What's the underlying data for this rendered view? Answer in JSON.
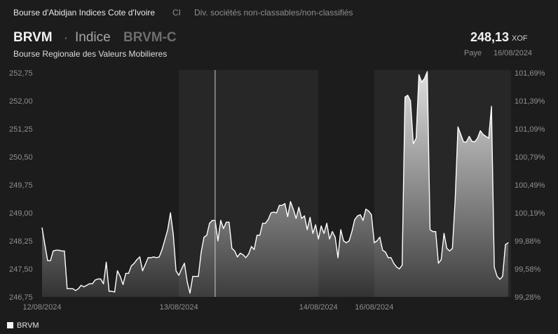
{
  "header": {
    "exchange": "Bourse d'Abidjan Indices Cote d'Ivoire",
    "class": "CI",
    "sector": "Div. sociétés non-classables/non-classifiés",
    "ticker": "BRVM",
    "dot": "·",
    "type": "Indice",
    "code": "BRVM-C",
    "name": "Bourse Regionale des Valeurs Mobilieres",
    "price": "248,13",
    "currency": "XOF",
    "status": "Paye",
    "date": "16/08/2024"
  },
  "colors": {
    "background": "#1c1c1c",
    "band": "#272727",
    "line": "#ffffff",
    "text_muted": "#8f8f8f"
  },
  "legend": {
    "label": "BRVM"
  },
  "chart_data": {
    "type": "area",
    "title": "",
    "xlabel": "",
    "ylabel": "",
    "ylim": [
      246.75,
      252.75
    ],
    "y_ticks_left": [
      "252,75",
      "252,00",
      "251,25",
      "250,50",
      "249,75",
      "249,00",
      "248,25",
      "247,50",
      "246,75"
    ],
    "y_ticks_right": [
      "101,69%",
      "101,39%",
      "101,09%",
      "100,79%",
      "100,49%",
      "100,19%",
      "99,88%",
      "99,58%",
      "99,28%"
    ],
    "x_ticks": [
      {
        "label": "12/08/2024",
        "at": 0
      },
      {
        "label": "13/08/2024",
        "at": 49
      },
      {
        "label": "14/08/2024",
        "at": 99
      },
      {
        "label": "16/08/2024",
        "at": 119
      }
    ],
    "shaded_sessions": [
      [
        49,
        99
      ],
      [
        119,
        168
      ]
    ],
    "crosshair_at": 62,
    "series": [
      {
        "name": "BRVM",
        "values": [
          248.6,
          248.15,
          247.72,
          247.72,
          247.98,
          248.0,
          248.0,
          247.98,
          247.98,
          246.97,
          246.97,
          246.97,
          246.92,
          246.97,
          247.06,
          247.02,
          247.06,
          247.1,
          247.1,
          247.2,
          247.23,
          247.23,
          247.1,
          247.68,
          246.9,
          246.9,
          246.88,
          247.45,
          247.3,
          247.08,
          247.38,
          247.38,
          247.58,
          247.65,
          247.75,
          247.82,
          247.45,
          247.62,
          247.8,
          247.8,
          247.82,
          247.8,
          247.82,
          248.02,
          248.28,
          248.55,
          249.0,
          248.42,
          247.45,
          247.33,
          247.5,
          247.65,
          247.15,
          246.85,
          247.3,
          247.3,
          247.3,
          247.95,
          248.35,
          248.4,
          248.72,
          248.8,
          248.8,
          248.25,
          248.8,
          248.58,
          248.75,
          248.75,
          248.05,
          247.98,
          247.82,
          247.92,
          247.88,
          247.8,
          247.9,
          248.1,
          248.02,
          248.4,
          248.4,
          248.72,
          248.72,
          248.82,
          249.0,
          249.02,
          249.0,
          249.2,
          249.2,
          249.25,
          248.9,
          249.3,
          249.1,
          248.85,
          249.15,
          248.85,
          248.92,
          248.55,
          248.88,
          248.45,
          248.68,
          248.3,
          248.65,
          248.45,
          248.72,
          248.3,
          248.5,
          248.35,
          247.8,
          248.55,
          248.25,
          248.2,
          248.25,
          248.5,
          248.82,
          248.92,
          248.95,
          248.8,
          249.1,
          249.05,
          248.95,
          248.2,
          248.25,
          248.35,
          248.0,
          247.95,
          247.8,
          247.8,
          247.65,
          247.55,
          247.5,
          247.6,
          252.1,
          252.15,
          252.0,
          250.85,
          251.0,
          252.7,
          252.5,
          252.6,
          252.78,
          248.55,
          248.5,
          248.5,
          247.65,
          247.75,
          248.45,
          248.05,
          247.98,
          248.05,
          249.35,
          251.3,
          251.1,
          250.9,
          250.9,
          251.05,
          250.92,
          250.9,
          251.0,
          251.2,
          251.1,
          251.05,
          251.0,
          251.85,
          247.55,
          247.3,
          247.22,
          247.3,
          248.15,
          248.2
        ]
      }
    ]
  }
}
